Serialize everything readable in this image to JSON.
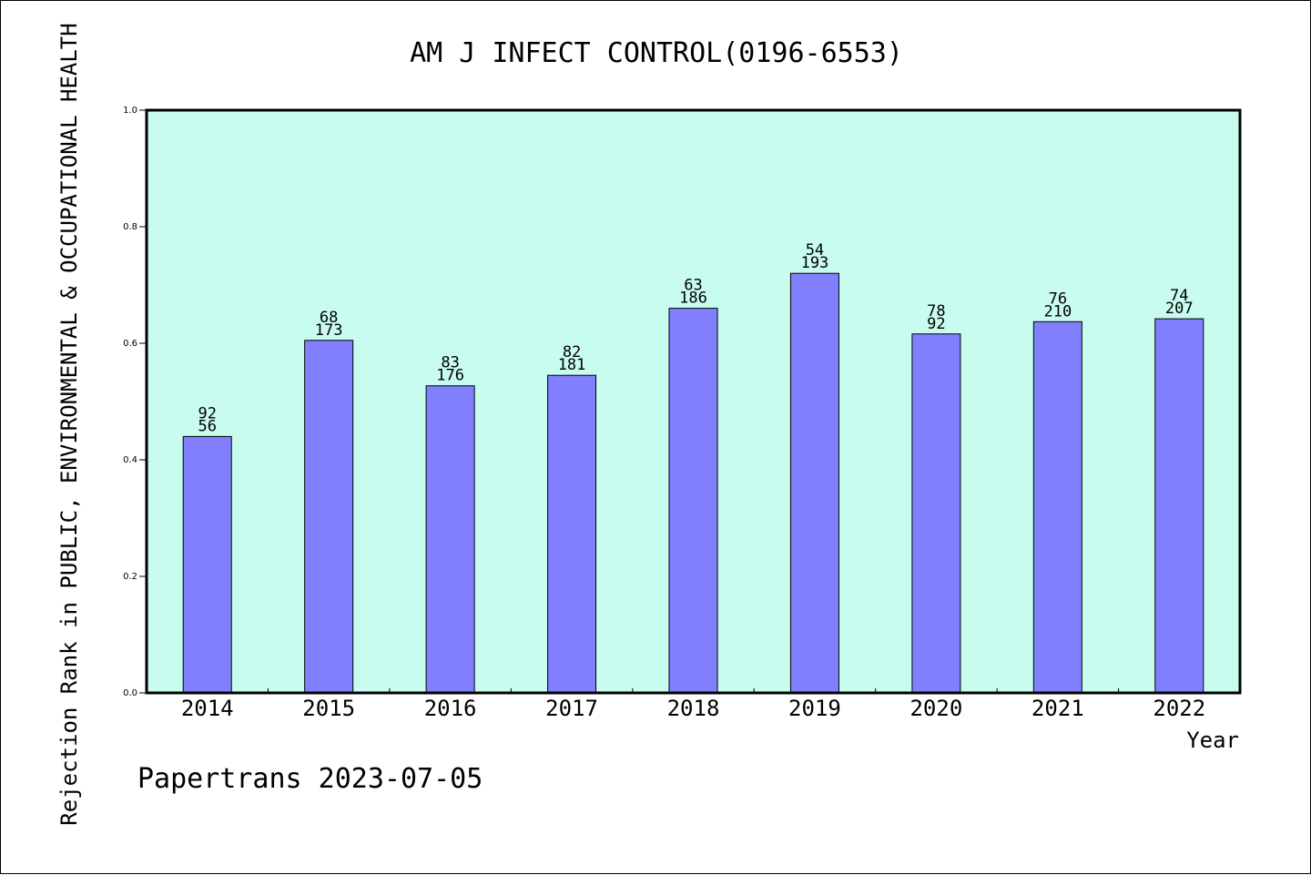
{
  "chart_data": {
    "type": "bar",
    "title": "AM J INFECT CONTROL(0196-6553)",
    "xlabel": "Year",
    "ylabel": "Rejection Rank in PUBLIC, ENVIRONMENTAL & OCCUPATIONAL HEALTH",
    "footer": "Papertrans 2023-07-05",
    "ylim": [
      0,
      1.0
    ],
    "yticks": [
      "0.0",
      "0.2",
      "0.4",
      "0.6",
      "0.8",
      "1.0"
    ],
    "grid": false,
    "categories": [
      "2014",
      "2015",
      "2016",
      "2017",
      "2018",
      "2019",
      "2020",
      "2021",
      "2022"
    ],
    "values": [
      0.44,
      0.605,
      0.527,
      0.545,
      0.66,
      0.72,
      0.616,
      0.637,
      0.642
    ],
    "labels_top": [
      "92",
      "68",
      "83",
      "82",
      "63",
      "54",
      "78",
      "76",
      "74"
    ],
    "labels_bottom": [
      "56",
      "173",
      "176",
      "181",
      "186",
      "193",
      "92",
      "210",
      "207"
    ],
    "colors": {
      "plot_background": "#c8fcee",
      "bar_fill": "#8080ff",
      "bar_stroke": "#000000"
    }
  }
}
